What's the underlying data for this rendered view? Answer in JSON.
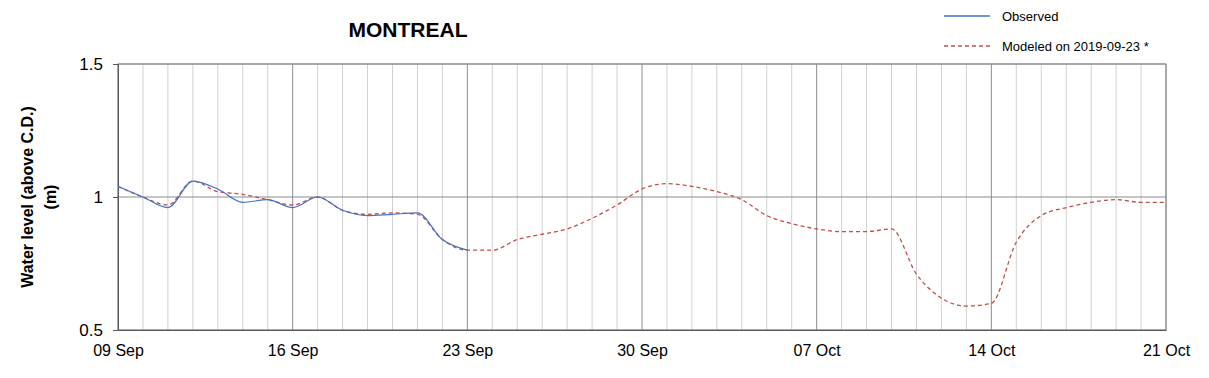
{
  "chart_data": {
    "type": "line",
    "title": "MONTREAL",
    "y_label": [
      "Water level (above C.D.)",
      "(m)"
    ],
    "categories": [
      "09 Sep",
      null,
      null,
      null,
      null,
      null,
      null,
      "16 Sep",
      null,
      null,
      null,
      null,
      null,
      null,
      "23 Sep",
      null,
      null,
      null,
      null,
      null,
      null,
      "30 Sep",
      null,
      null,
      null,
      null,
      null,
      null,
      "07 Oct",
      null,
      null,
      null,
      null,
      null,
      null,
      "14 Oct",
      null,
      null,
      null,
      null,
      null,
      null,
      "21 Oct"
    ],
    "series": [
      {
        "name": "Observed",
        "color": "#4472c4",
        "line_style": "solid",
        "values": [
          1.04,
          1.0,
          0.96,
          1.06,
          1.03,
          0.98,
          0.99,
          0.96,
          1.0,
          0.95,
          0.93,
          0.935,
          0.94,
          0.84,
          0.8,
          null,
          null,
          null,
          null,
          null,
          null,
          null,
          null,
          null,
          null,
          null,
          null,
          null,
          null,
          null,
          null,
          null,
          null,
          null,
          null,
          null,
          null,
          null,
          null,
          null,
          null,
          null,
          null
        ]
      },
      {
        "name": "Modeled on 2019-09-23 *",
        "color": "#c0504d",
        "line_style": "dashed",
        "values": [
          1.04,
          1.0,
          0.97,
          1.06,
          1.02,
          1.01,
          0.99,
          0.97,
          1.0,
          0.95,
          0.935,
          0.94,
          0.935,
          0.84,
          0.8,
          0.8,
          0.84,
          0.86,
          0.88,
          0.92,
          0.97,
          1.03,
          1.05,
          1.04,
          1.02,
          0.99,
          0.93,
          0.9,
          0.88,
          0.87,
          0.87,
          0.88,
          0.71,
          0.62,
          0.59,
          0.6,
          0.83,
          0.93,
          0.96,
          0.98,
          0.99,
          0.98,
          0.98
        ]
      }
    ],
    "ylim": [
      0.5,
      1.5
    ],
    "yticks": [
      0.5,
      1,
      1.5
    ],
    "grid": true,
    "legend": "upper right"
  }
}
